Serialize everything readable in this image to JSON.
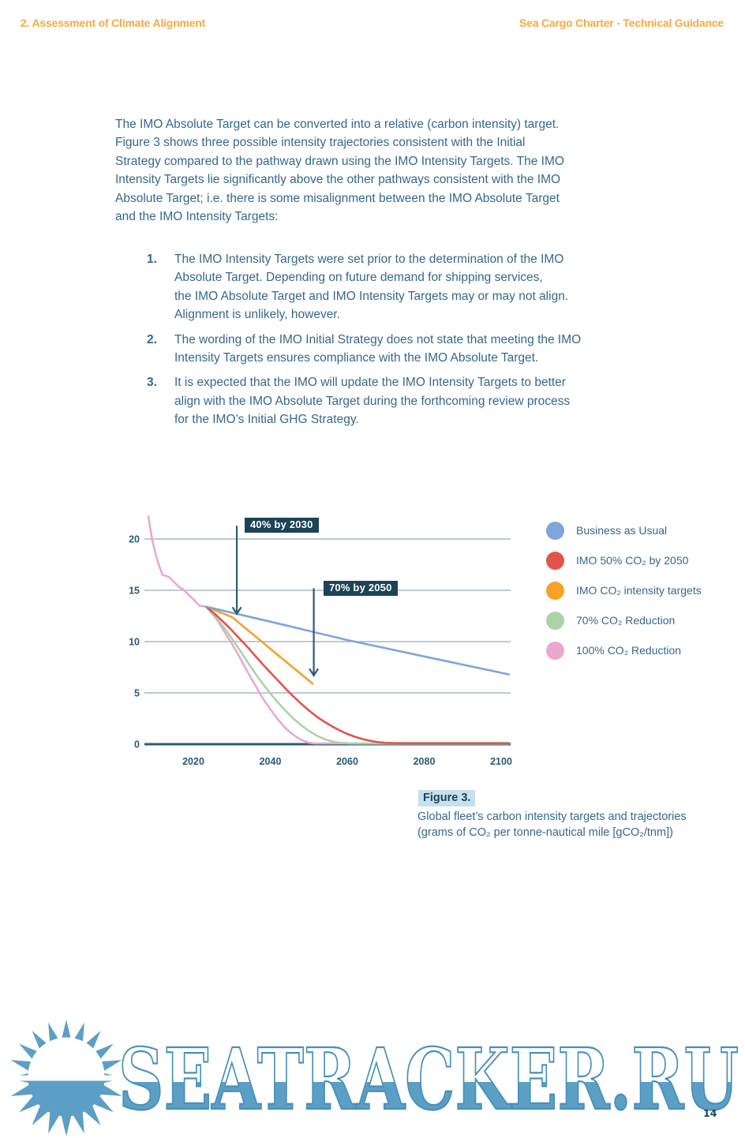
{
  "page": {
    "header": {
      "section": "2. Assessment of Climate Alignment",
      "doc_title": "Sea Cargo Charter - Technical Guidance"
    },
    "intro_paragraph": "The IMO Absolute Target can be converted into a relative (carbon intensity) target.\nFigure 3 shows three possible intensity trajectories consistent with the Initial\nStrategy compared to the pathway drawn using the IMO Intensity Targets. The IMO\nIntensity Targets lie significantly above the other pathways consistent with the IMO\nAbsolute Target; i.e. there is some misalignment between the IMO Absolute Target\nand the IMO Intensity Targets:",
    "list": [
      {
        "num": "1.",
        "text": "The IMO Intensity Targets were set prior to the determination of the IMO\nAbsolute Target. Depending on future demand for shipping services,\nthe IMO Absolute Target and IMO Intensity Targets may or may not align.\nAlignment is unlikely, however."
      },
      {
        "num": "2.",
        "text": "The wording of the IMO Initial Strategy does not state that meeting the IMO\nIntensity Targets ensures compliance with the IMO Absolute Target."
      },
      {
        "num": "3.",
        "text": "It is expected that the IMO will update the IMO Intensity Targets to better\nalign with the IMO Absolute Target during the forthcoming review process\nfor the IMO’s Initial GHG Strategy."
      }
    ],
    "figure": {
      "label": "Figure 3.",
      "caption_line1": "Global fleet’s carbon intensity targets and trajectories",
      "caption_line2": "(grams of CO₂ per tonne-nautical mile [gCO₂/tnm])"
    },
    "watermark": {
      "text": "SEATRACKER.RU"
    },
    "page_number": "14"
  },
  "chart_data": {
    "type": "line",
    "title": "",
    "xlabel": "",
    "ylabel": "",
    "x_ticks": [
      2020,
      2040,
      2060,
      2080,
      2100
    ],
    "y_ticks": [
      0,
      5,
      10,
      15,
      20
    ],
    "x_range": [
      2007,
      2102
    ],
    "y_range": [
      0,
      22.5
    ],
    "grid": true,
    "legend_position": "right",
    "series": [
      {
        "name": "Business as Usual",
        "color": "#7EA6D8",
        "points": [
          [
            2023.3,
            13.4
          ],
          [
            2040,
            11.95
          ],
          [
            2060,
            10.15
          ],
          [
            2080,
            8.55
          ],
          [
            2102,
            6.8
          ]
        ]
      },
      {
        "name": "IMO 50% CO₂ by 2050",
        "color": "#E2544B",
        "points": [
          [
            2023.3,
            13.4
          ],
          [
            2026,
            12.55
          ],
          [
            2028,
            11.85
          ],
          [
            2030,
            11.1
          ],
          [
            2032,
            10.3
          ],
          [
            2034,
            9.5
          ],
          [
            2036,
            8.65
          ],
          [
            2038,
            7.8
          ],
          [
            2040,
            7.0
          ],
          [
            2042,
            6.2
          ],
          [
            2044,
            5.4
          ],
          [
            2046,
            4.65
          ],
          [
            2048,
            3.95
          ],
          [
            2050,
            3.3
          ],
          [
            2052,
            2.7
          ],
          [
            2054,
            2.2
          ],
          [
            2056,
            1.75
          ],
          [
            2058,
            1.35
          ],
          [
            2060,
            1.0
          ],
          [
            2062,
            0.72
          ],
          [
            2064,
            0.5
          ],
          [
            2066,
            0.33
          ],
          [
            2068,
            0.2
          ],
          [
            2070,
            0.13
          ],
          [
            2073,
            0.1
          ],
          [
            2102,
            0.1
          ]
        ]
      },
      {
        "name": "IMO CO₂ intensity targets",
        "color": "#F6A229",
        "points": [
          [
            2023.3,
            13.4
          ],
          [
            2030,
            12.4
          ],
          [
            2051,
            5.9
          ]
        ]
      },
      {
        "name": "70% CO₂ Reduction",
        "color": "#ABD3A8",
        "points": [
          [
            2023.3,
            13.4
          ],
          [
            2026,
            12.3
          ],
          [
            2028,
            11.35
          ],
          [
            2030,
            10.3
          ],
          [
            2032,
            9.2
          ],
          [
            2034,
            8.05
          ],
          [
            2036,
            6.95
          ],
          [
            2038,
            5.9
          ],
          [
            2040,
            4.95
          ],
          [
            2042,
            4.05
          ],
          [
            2044,
            3.25
          ],
          [
            2046,
            2.5
          ],
          [
            2048,
            1.85
          ],
          [
            2050,
            1.3
          ],
          [
            2052,
            0.85
          ],
          [
            2054,
            0.5
          ],
          [
            2056,
            0.28
          ],
          [
            2058,
            0.14
          ],
          [
            2061,
            0.06
          ],
          [
            2102,
            0.06
          ]
        ]
      },
      {
        "name": "100% CO₂ Reduction",
        "color": "#E9A8D0",
        "points": [
          [
            2008.3,
            22.2
          ],
          [
            2009.3,
            19.9
          ],
          [
            2010.3,
            18.4
          ],
          [
            2011.2,
            17.3
          ],
          [
            2012,
            16.5
          ],
          [
            2013.7,
            16.3
          ],
          [
            2015,
            15.8
          ],
          [
            2016.3,
            15.3
          ],
          [
            2017.3,
            15.1
          ],
          [
            2019.8,
            14.2
          ],
          [
            2021.6,
            13.5
          ],
          [
            2023.3,
            13.4
          ],
          [
            2026,
            12.2
          ],
          [
            2028,
            11.0
          ],
          [
            2030,
            9.8
          ],
          [
            2032,
            8.5
          ],
          [
            2034,
            7.1
          ],
          [
            2036,
            5.8
          ],
          [
            2038,
            4.5
          ],
          [
            2040,
            3.4
          ],
          [
            2042,
            2.4
          ],
          [
            2044,
            1.55
          ],
          [
            2046,
            0.9
          ],
          [
            2048,
            0.42
          ],
          [
            2050,
            0.15
          ],
          [
            2051.5,
            0.08
          ],
          [
            2102,
            0.08
          ]
        ]
      }
    ],
    "annotations": [
      {
        "text": "40% by 2030",
        "arrow_x": 2031.3,
        "arrow_from": 21.3,
        "arrow_to": 12.7
      },
      {
        "text": "70% by 2050",
        "arrow_x": 2051.3,
        "arrow_from": 15.2,
        "arrow_to": 6.7
      }
    ]
  }
}
